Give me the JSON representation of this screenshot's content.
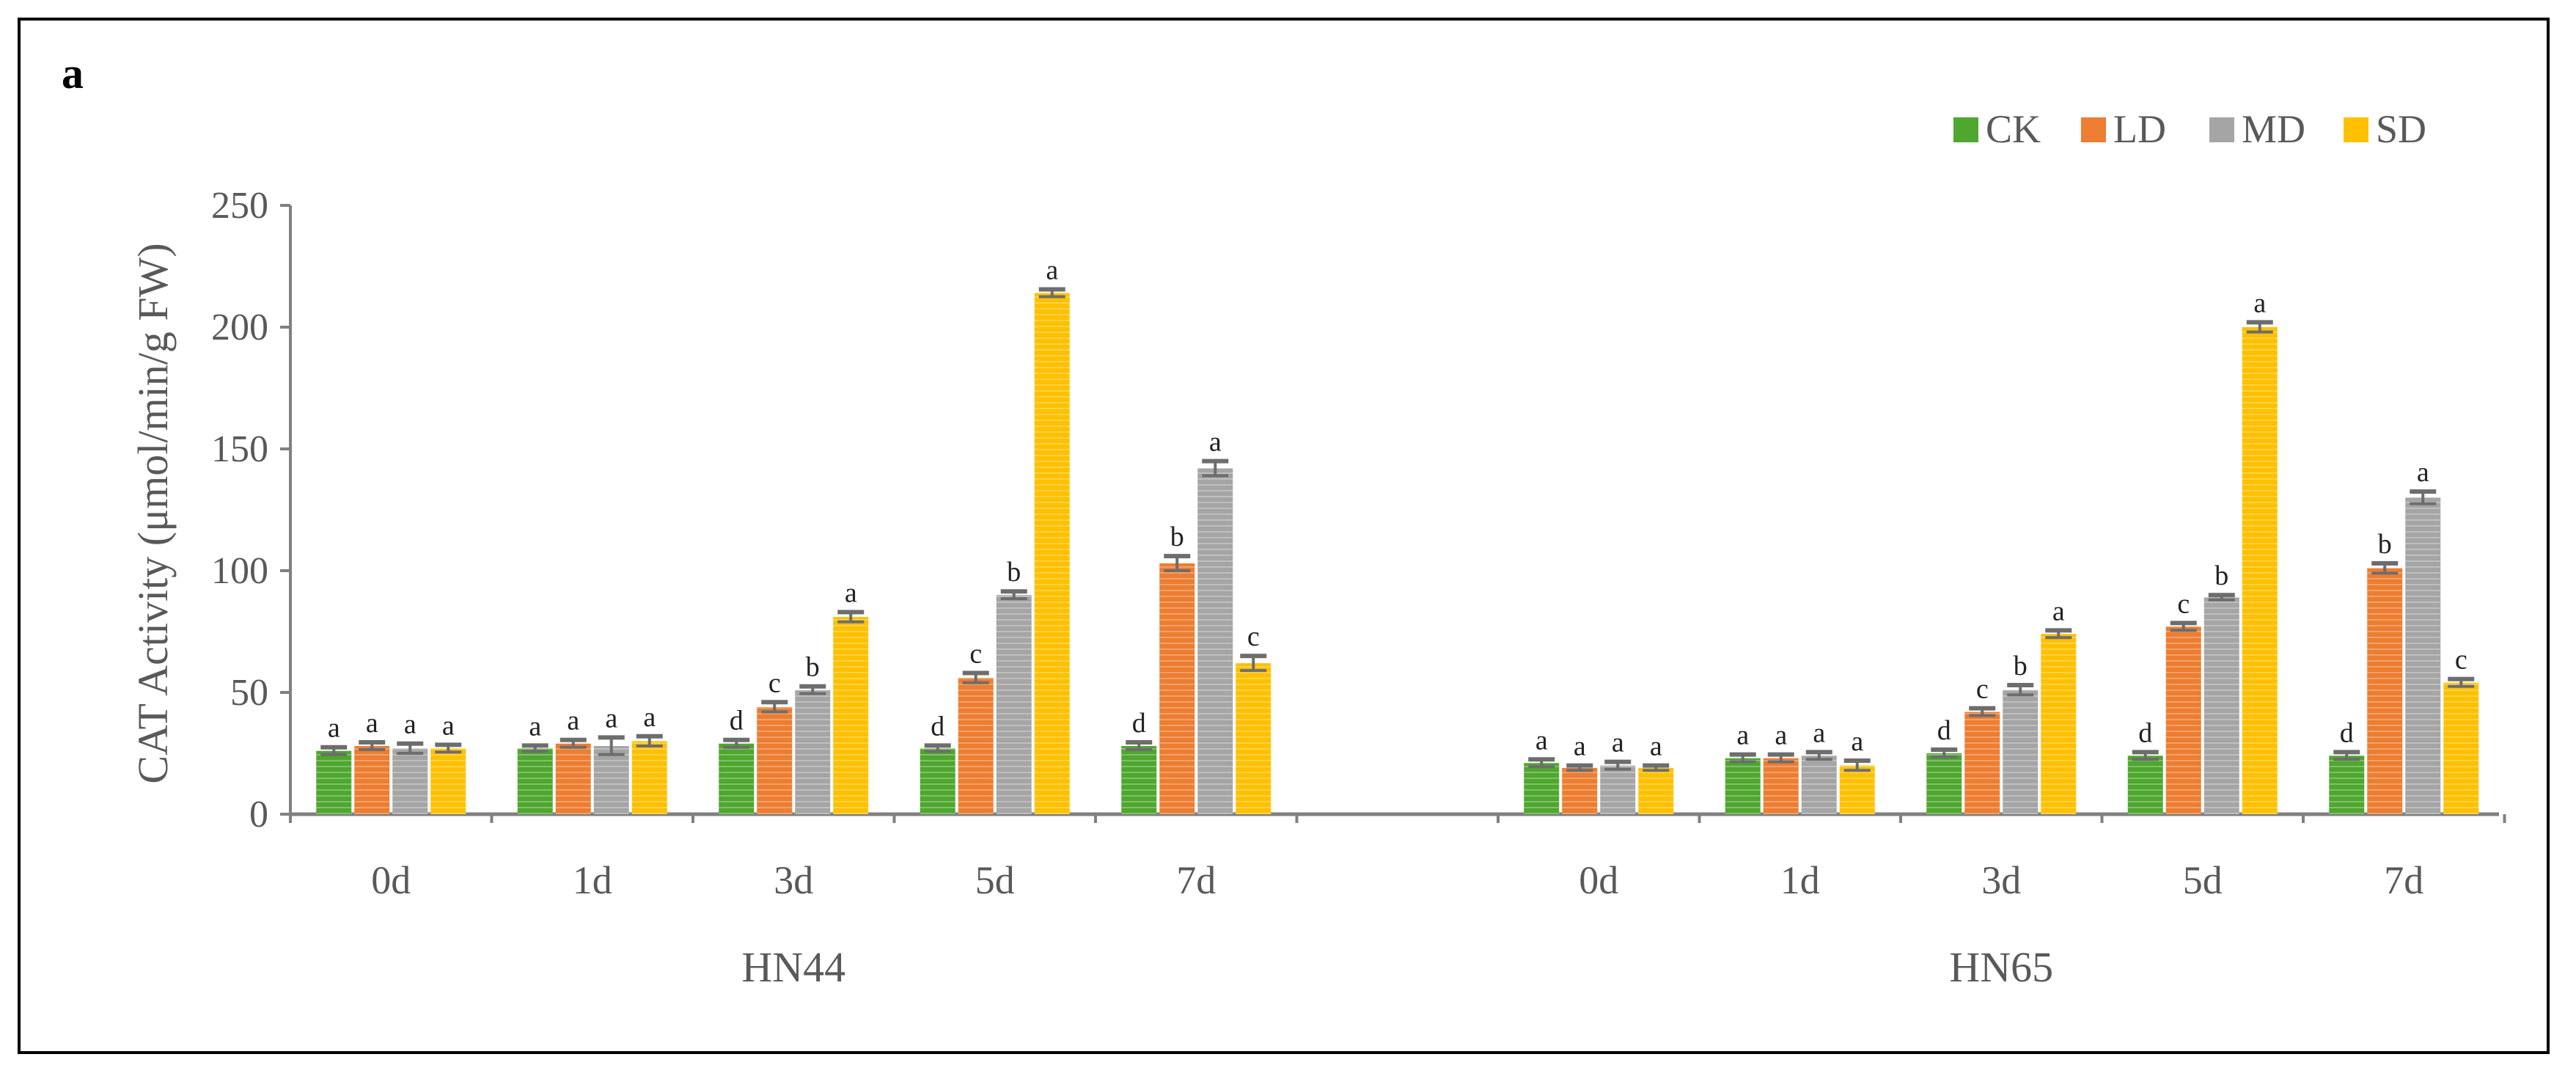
{
  "panel_label": "a",
  "chart_data": {
    "type": "bar",
    "title": "",
    "xlabel": "",
    "ylabel": "CAT Activity (μmol/min/g FW)",
    "ylim": [
      0,
      250
    ],
    "yticks": [
      0,
      50,
      100,
      150,
      200,
      250
    ],
    "legend_position": "top-right",
    "legend_items": [
      "CK",
      "LD",
      "MD",
      "SD"
    ],
    "groups": [
      {
        "name": "HN44",
        "categories": [
          "0d",
          "1d",
          "3d",
          "5d",
          "7d"
        ],
        "series": [
          {
            "name": "CK",
            "color": "#4EA72E",
            "values": [
              26,
              27,
              29,
              27,
              28
            ],
            "errors": [
              1.5,
              1.2,
              1.5,
              1.2,
              1.5
            ],
            "labels": [
              "a",
              "a",
              "d",
              "d",
              "d"
            ]
          },
          {
            "name": "LD",
            "color": "#ED7D31",
            "values": [
              28,
              29,
              44,
              56,
              103
            ],
            "errors": [
              1.5,
              1.5,
              2,
              2,
              3
            ],
            "labels": [
              "a",
              "a",
              "c",
              "c",
              "b"
            ]
          },
          {
            "name": "MD",
            "color": "#A5A5A5",
            "values": [
              27,
              28,
              51,
              90,
              142
            ],
            "errors": [
              2,
              3.5,
              1.5,
              1.5,
              3
            ],
            "labels": [
              "a",
              "a",
              "b",
              "b",
              "a"
            ]
          },
          {
            "name": "SD",
            "color": "#FFC000",
            "values": [
              27,
              30,
              81,
              214,
              62
            ],
            "errors": [
              1.5,
              2,
              2,
              1.5,
              3
            ],
            "labels": [
              "a",
              "a",
              "a",
              "a",
              "c"
            ]
          }
        ]
      },
      {
        "name": "HN65",
        "categories": [
          "0d",
          "1d",
          "3d",
          "5d",
          "7d"
        ],
        "series": [
          {
            "name": "CK",
            "color": "#4EA72E",
            "values": [
              21,
              23,
              25,
              24,
              24
            ],
            "errors": [
              1.5,
              1.5,
              1.5,
              1.5,
              1.5
            ],
            "labels": [
              "a",
              "a",
              "d",
              "d",
              "d"
            ]
          },
          {
            "name": "LD",
            "color": "#ED7D31",
            "values": [
              19,
              23,
              42,
              77,
              101
            ],
            "errors": [
              1,
              1.5,
              1.5,
              1.5,
              2
            ],
            "labels": [
              "a",
              "a",
              "c",
              "c",
              "b"
            ]
          },
          {
            "name": "MD",
            "color": "#A5A5A5",
            "values": [
              20,
              24,
              51,
              89,
              130
            ],
            "errors": [
              1.5,
              1.5,
              2,
              1,
              2.5
            ],
            "labels": [
              "a",
              "a",
              "b",
              "b",
              "a"
            ]
          },
          {
            "name": "SD",
            "color": "#FFC000",
            "values": [
              19,
              20,
              74,
              200,
              54
            ],
            "errors": [
              1,
              2,
              1.5,
              2,
              1.5
            ],
            "labels": [
              "a",
              "a",
              "a",
              "a",
              "c"
            ]
          }
        ]
      }
    ]
  }
}
